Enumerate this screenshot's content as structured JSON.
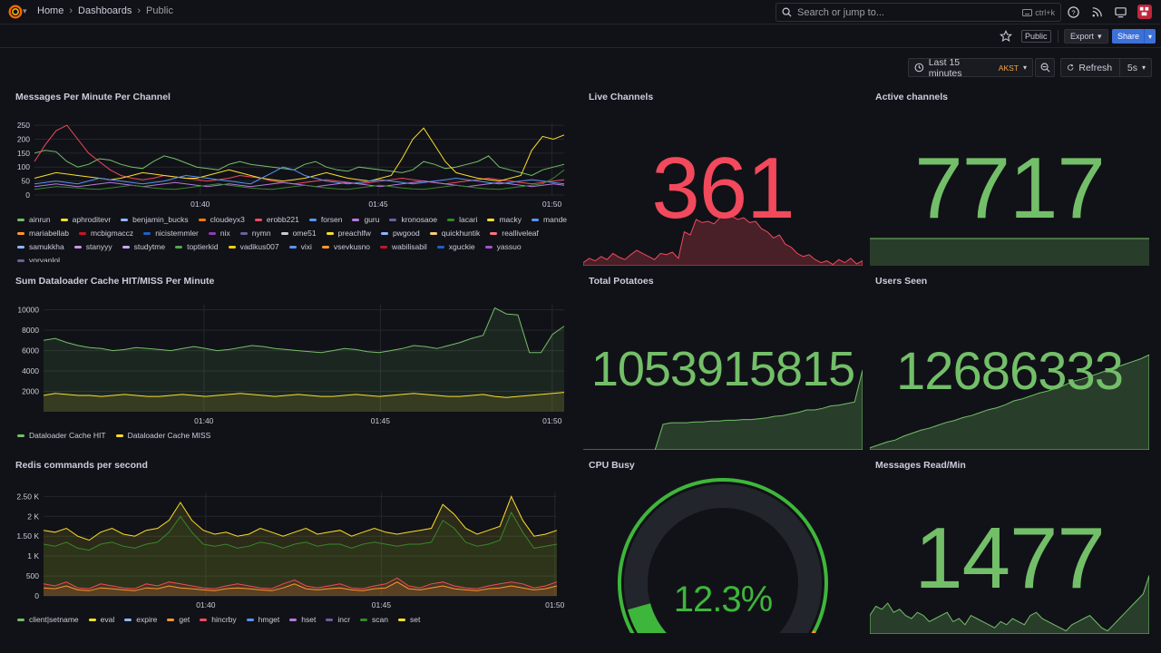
{
  "header": {
    "breadcrumbs": [
      "Home",
      "Dashboards",
      "Public"
    ],
    "search_placeholder": "Search or jump to...",
    "search_shortcut": "ctrl+k"
  },
  "toolbar": {
    "public_badge": "Public",
    "export_label": "Export",
    "share_label": "Share",
    "time_range": "Last 15 minutes",
    "timezone": "AKST",
    "refresh_label": "Refresh",
    "refresh_interval": "5s"
  },
  "colors": {
    "green": "#73bf69",
    "red": "#f2495c",
    "yellow": "#fade2a",
    "orange": "#ff9830",
    "background": "#111217"
  },
  "panels": {
    "messages_per_minute": {
      "title": "Messages Per Minute Per Channel",
      "legend": [
        {
          "name": "ainrun",
          "color": "#73bf69"
        },
        {
          "name": "aphroditevr",
          "color": "#fade2a"
        },
        {
          "name": "benjamin_bucks",
          "color": "#8ab8ff"
        },
        {
          "name": "cloudeyx3",
          "color": "#ff780a"
        },
        {
          "name": "erobb221",
          "color": "#f2495c"
        },
        {
          "name": "forsen",
          "color": "#5794f2"
        },
        {
          "name": "guru",
          "color": "#b877d9"
        },
        {
          "name": "kronosaoe",
          "color": "#705da0"
        },
        {
          "name": "lacari",
          "color": "#37872d"
        },
        {
          "name": "macky",
          "color": "#fade2a"
        },
        {
          "name": "mande",
          "color": "#5794f2"
        },
        {
          "name": "mariabellab",
          "color": "#ff9830"
        },
        {
          "name": "mcbigmaccz",
          "color": "#c4162a"
        },
        {
          "name": "nicistemmler",
          "color": "#1f60c4"
        },
        {
          "name": "nix",
          "color": "#8f3bb8"
        },
        {
          "name": "nymn",
          "color": "#705da0"
        },
        {
          "name": "ome51",
          "color": "#cccccc"
        },
        {
          "name": "preachlfw",
          "color": "#fade2a"
        },
        {
          "name": "pwgood",
          "color": "#8ab8ff"
        },
        {
          "name": "quickhuntik",
          "color": "#ffcb7d"
        },
        {
          "name": "realliveleaf",
          "color": "#ff7383"
        },
        {
          "name": "samukkha",
          "color": "#8ab8ff"
        },
        {
          "name": "stanyyy",
          "color": "#ca95e5"
        },
        {
          "name": "studytme",
          "color": "#cba6f7"
        },
        {
          "name": "toptierkid",
          "color": "#56a64b"
        },
        {
          "name": "vadikus007",
          "color": "#f2cc0c"
        },
        {
          "name": "vixi",
          "color": "#5794f2"
        },
        {
          "name": "vsevkusno",
          "color": "#ff9830"
        },
        {
          "name": "wabilisabil",
          "color": "#c4162a"
        },
        {
          "name": "xguckie",
          "color": "#1f60c4"
        },
        {
          "name": "yassuo",
          "color": "#a352cc"
        },
        {
          "name": "yoryanlol",
          "color": "#705da0"
        }
      ]
    },
    "live_channels": {
      "title": "Live Channels",
      "value": "361"
    },
    "active_channels": {
      "title": "Active channels",
      "value": "7717"
    },
    "dataloader": {
      "title": "Sum Dataloader Cache HIT/MISS Per Minute",
      "legend": [
        {
          "name": "Dataloader Cache HIT",
          "color": "#73bf69"
        },
        {
          "name": "Dataloader Cache MISS",
          "color": "#fade2a"
        }
      ]
    },
    "total_potatoes": {
      "title": "Total Potatoes",
      "value": "1053915815"
    },
    "users_seen": {
      "title": "Users Seen",
      "value": "12686333"
    },
    "redis": {
      "title": "Redis commands per second",
      "legend": [
        {
          "name": "client|setname",
          "color": "#73bf69"
        },
        {
          "name": "eval",
          "color": "#fade2a"
        },
        {
          "name": "expire",
          "color": "#8ab8ff"
        },
        {
          "name": "get",
          "color": "#ff9830"
        },
        {
          "name": "hincrby",
          "color": "#f2495c"
        },
        {
          "name": "hmget",
          "color": "#5794f2"
        },
        {
          "name": "hset",
          "color": "#b877d9"
        },
        {
          "name": "incr",
          "color": "#705da0"
        },
        {
          "name": "scan",
          "color": "#37872d"
        },
        {
          "name": "set",
          "color": "#fade2a"
        }
      ]
    },
    "cpu_busy": {
      "title": "CPU Busy",
      "value": "12.3%",
      "percent": 12.3
    },
    "messages_read": {
      "title": "Messages Read/Min",
      "value": "1477"
    }
  },
  "chart_data": [
    {
      "type": "line",
      "title": "Messages Per Minute Per Channel",
      "x_ticks": [
        "01:40",
        "01:45",
        "01:50"
      ],
      "y_ticks": [
        "0",
        "50",
        "100",
        "150",
        "200",
        "250"
      ],
      "ylim": [
        0,
        260
      ],
      "series": [
        {
          "name": "ainrun",
          "values": [
            150,
            160,
            155,
            120,
            100,
            110,
            130,
            125,
            110,
            100,
            95,
            120,
            140,
            130,
            115,
            100,
            95,
            90,
            110,
            120,
            110,
            105,
            100,
            95,
            90,
            110,
            120,
            100,
            90,
            85,
            100,
            95,
            90,
            85,
            80,
            90,
            120,
            110,
            95,
            100,
            110,
            120,
            140,
            100,
            90,
            80,
            70,
            90,
            100,
            110
          ]
        },
        {
          "name": "erobb221",
          "values": [
            120,
            180,
            230,
            250,
            200,
            150,
            120,
            90,
            70,
            60,
            55,
            60,
            70,
            65,
            60,
            55,
            50,
            55,
            60,
            70,
            65,
            60,
            50,
            45,
            40,
            45,
            50,
            55,
            50,
            45,
            40,
            45,
            50,
            55,
            60,
            55,
            50,
            45,
            40,
            45,
            50,
            55,
            60,
            55,
            50,
            45,
            40,
            45,
            50,
            55
          ]
        },
        {
          "name": "macky",
          "values": [
            60,
            70,
            80,
            75,
            70,
            65,
            60,
            55,
            60,
            70,
            80,
            75,
            70,
            65,
            60,
            60,
            70,
            80,
            90,
            80,
            70,
            60,
            55,
            50,
            55,
            60,
            70,
            80,
            70,
            60,
            55,
            50,
            60,
            70,
            130,
            200,
            240,
            180,
            120,
            80,
            70,
            60,
            55,
            50,
            60,
            70,
            160,
            210,
            200,
            215
          ]
        },
        {
          "name": "forsen",
          "values": [
            40,
            45,
            50,
            45,
            40,
            50,
            60,
            55,
            50,
            45,
            40,
            45,
            50,
            60,
            70,
            65,
            60,
            55,
            50,
            45,
            40,
            60,
            80,
            100,
            90,
            70,
            60,
            50,
            45,
            40,
            45,
            50,
            55,
            50,
            45,
            40,
            45,
            50,
            55,
            60,
            55,
            50,
            45,
            40,
            45,
            50,
            55,
            50,
            45,
            40
          ]
        },
        {
          "name": "guru",
          "values": [
            30,
            35,
            40,
            35,
            30,
            35,
            40,
            45,
            40,
            35,
            30,
            35,
            40,
            45,
            40,
            35,
            30,
            35,
            40,
            35,
            30,
            35,
            40,
            45,
            40,
            35,
            30,
            35,
            40,
            45,
            40,
            35,
            30,
            35,
            40,
            45,
            50,
            45,
            40,
            35,
            30,
            35,
            40,
            45,
            40,
            35,
            30,
            35,
            40,
            35
          ]
        },
        {
          "name": "lacari",
          "values": [
            20,
            25,
            30,
            28,
            25,
            22,
            20,
            25,
            30,
            35,
            30,
            25,
            22,
            20,
            25,
            30,
            35,
            40,
            35,
            30,
            25,
            22,
            20,
            25,
            30,
            35,
            30,
            25,
            22,
            20,
            25,
            30,
            35,
            30,
            25,
            22,
            20,
            25,
            30,
            35,
            30,
            25,
            22,
            20,
            25,
            30,
            35,
            40,
            60,
            90
          ]
        }
      ]
    },
    {
      "type": "area",
      "title": "Sum Dataloader Cache HIT/MISS Per Minute",
      "x_ticks": [
        "01:40",
        "01:45",
        "01:50"
      ],
      "y_ticks": [
        "2000",
        "4000",
        "6000",
        "8000",
        "10000"
      ],
      "ylim": [
        0,
        10500
      ],
      "series": [
        {
          "name": "Dataloader Cache HIT",
          "values": [
            7000,
            7200,
            6800,
            6500,
            6300,
            6200,
            6000,
            6100,
            6300,
            6200,
            6100,
            6000,
            6200,
            6400,
            6200,
            6000,
            6100,
            6300,
            6500,
            6400,
            6200,
            6100,
            6000,
            5900,
            5800,
            6000,
            6200,
            6100,
            5900,
            5800,
            6000,
            6200,
            6500,
            6400,
            6200,
            6500,
            6800,
            7200,
            7500,
            10200,
            9600,
            9500,
            5800,
            5800,
            7600,
            8400
          ]
        },
        {
          "name": "Dataloader Cache MISS",
          "values": [
            1600,
            1800,
            1700,
            1600,
            1600,
            1500,
            1600,
            1700,
            1600,
            1500,
            1500,
            1600,
            1700,
            1600,
            1500,
            1600,
            1700,
            1800,
            1700,
            1600,
            1500,
            1600,
            1700,
            1600,
            1500,
            1500,
            1600,
            1700,
            1600,
            1500,
            1600,
            1700,
            1800,
            1700,
            1600,
            1500,
            1500,
            1600,
            1700,
            1500,
            1400,
            1500,
            1600,
            1700,
            1800,
            1900
          ]
        }
      ]
    },
    {
      "type": "area",
      "title": "Redis commands per second",
      "x_ticks": [
        "01:40",
        "01:45",
        "01:50"
      ],
      "y_ticks": [
        "0",
        "500",
        "1 K",
        "1.50 K",
        "2 K",
        "2.50 K"
      ],
      "ylim": [
        0,
        2600
      ],
      "series": [
        {
          "name": "eval",
          "values": [
            1650,
            1600,
            1700,
            1500,
            1400,
            1600,
            1700,
            1550,
            1500,
            1650,
            1700,
            1900,
            2350,
            1900,
            1650,
            1550,
            1600,
            1500,
            1550,
            1700,
            1600,
            1500,
            1600,
            1700,
            1550,
            1600,
            1650,
            1500,
            1600,
            1700,
            1600,
            1550,
            1600,
            1650,
            1700,
            2300,
            2050,
            1700,
            1550,
            1650,
            1750,
            2500,
            1900,
            1500,
            1550,
            1650
          ]
        },
        {
          "name": "scan",
          "values": [
            1300,
            1250,
            1350,
            1200,
            1150,
            1300,
            1350,
            1250,
            1200,
            1300,
            1350,
            1600,
            2000,
            1600,
            1300,
            1250,
            1300,
            1200,
            1250,
            1350,
            1300,
            1200,
            1300,
            1350,
            1250,
            1300,
            1300,
            1200,
            1300,
            1350,
            1300,
            1250,
            1300,
            1300,
            1350,
            1900,
            1700,
            1350,
            1250,
            1300,
            1400,
            2100,
            1600,
            1200,
            1250,
            1300
          ]
        },
        {
          "name": "hincrby",
          "values": [
            300,
            250,
            350,
            200,
            180,
            300,
            250,
            200,
            180,
            300,
            250,
            350,
            300,
            250,
            200,
            180,
            250,
            300,
            250,
            200,
            180,
            300,
            400,
            250,
            200,
            250,
            300,
            200,
            180,
            250,
            300,
            450,
            250,
            200,
            300,
            350,
            250,
            200,
            180,
            250,
            300,
            350,
            300,
            200,
            250,
            350
          ]
        },
        {
          "name": "get",
          "values": [
            200,
            180,
            250,
            150,
            130,
            200,
            180,
            150,
            130,
            200,
            180,
            250,
            200,
            180,
            150,
            130,
            180,
            200,
            180,
            150,
            130,
            200,
            300,
            180,
            150,
            180,
            200,
            150,
            130,
            180,
            200,
            350,
            180,
            150,
            200,
            250,
            180,
            150,
            130,
            180,
            200,
            250,
            200,
            150,
            180,
            250
          ]
        }
      ]
    }
  ]
}
